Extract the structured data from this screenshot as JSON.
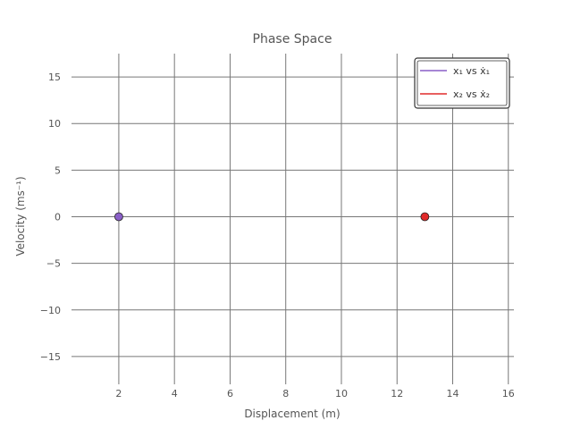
{
  "chart_data": {
    "type": "scatter",
    "title": "Phase Space",
    "xlabel": "Displacement (m)",
    "ylabel": "Velocity (ms⁻¹)",
    "xlim": [
      0.3,
      16.2
    ],
    "ylim": [
      -17.5,
      17.5
    ],
    "xticks": [
      2,
      4,
      6,
      8,
      10,
      12,
      14,
      16
    ],
    "yticks": [
      15,
      10,
      5,
      0,
      -5,
      -10,
      -15
    ],
    "xtick_labels": [
      "2",
      "4",
      "6",
      "8",
      "10",
      "12",
      "14",
      "16"
    ],
    "ytick_labels": [
      "15",
      "10",
      "5",
      "0",
      "−5",
      "−10",
      "−15"
    ],
    "grid": true,
    "legend_position": "top-right",
    "series": [
      {
        "name": "x₁ vs ẋ₁",
        "color": "#8a5fc7",
        "points": [
          [
            2,
            0
          ]
        ]
      },
      {
        "name": "x₂ vs ẋ₂",
        "color": "#e02a2a",
        "points": [
          [
            13,
            0
          ]
        ]
      }
    ]
  },
  "colors": {
    "grid": "#777777",
    "text": "#555555"
  }
}
